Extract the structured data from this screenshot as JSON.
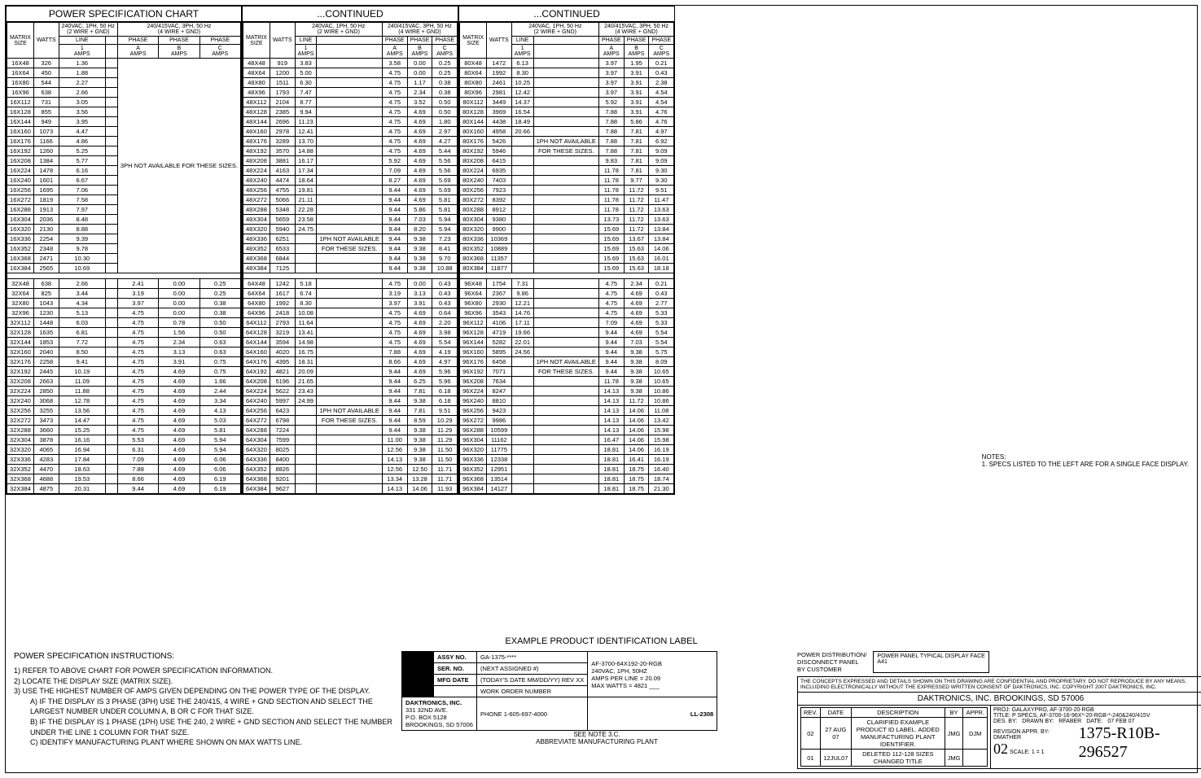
{
  "chart1": {
    "title": "POWER SPECIFICATION CHART",
    "col_group_a": "240VAC, 1PH, 50 Hz\n(2 WIRE + GND)",
    "col_group_b": "240/415VAC, 3PH, 50 Hz\n(4 WIRE + GND)",
    "headers": [
      "MATRIX SIZE",
      "WATTS",
      "LINE 1 AMPS",
      "PHASE A AMPS",
      "PHASE B AMPS",
      "PHASE C AMPS"
    ],
    "note": "3PH NOT AVAILABLE FOR THESE SIZES.",
    "rows_a": [
      [
        "16X48",
        "326",
        "1.36"
      ],
      [
        "16X64",
        "450",
        "1.88"
      ],
      [
        "16X80",
        "544",
        "2.27"
      ],
      [
        "16X96",
        "638",
        "2.66"
      ],
      [
        "16X112",
        "731",
        "3.05"
      ],
      [
        "16X128",
        "855",
        "3.56"
      ],
      [
        "16X144",
        "949",
        "3.95"
      ],
      [
        "16X160",
        "1073",
        "4.47"
      ],
      [
        "16X176",
        "1166",
        "4.86"
      ],
      [
        "16X192",
        "1260",
        "5.25"
      ],
      [
        "16X208",
        "1384",
        "5.77"
      ],
      [
        "16X224",
        "1478",
        "6.16"
      ],
      [
        "16X240",
        "1601",
        "6.67"
      ],
      [
        "16X256",
        "1695",
        "7.06"
      ],
      [
        "16X272",
        "1819",
        "7.58"
      ],
      [
        "16X288",
        "1913",
        "7.97"
      ],
      [
        "16X304",
        "2036",
        "8.48"
      ],
      [
        "16X320",
        "2130",
        "8.88"
      ],
      [
        "16X336",
        "2254",
        "9.39"
      ],
      [
        "16X352",
        "2348",
        "9.78"
      ],
      [
        "16X368",
        "2471",
        "10.30"
      ],
      [
        "16X384",
        "2565",
        "10.69"
      ]
    ],
    "rows_b": [
      [
        "32X48",
        "638",
        "2.66",
        "2.41",
        "0.00",
        "0.25"
      ],
      [
        "32X64",
        "825",
        "3.44",
        "3.19",
        "0.00",
        "0.25"
      ],
      [
        "32X80",
        "1043",
        "4.34",
        "3.97",
        "0.00",
        "0.38"
      ],
      [
        "32X96",
        "1230",
        "5.13",
        "4.75",
        "0.00",
        "0.38"
      ],
      [
        "32X112",
        "1448",
        "6.03",
        "4.75",
        "0.78",
        "0.50"
      ],
      [
        "32X128",
        "1635",
        "6.81",
        "4.75",
        "1.56",
        "0.50"
      ],
      [
        "32X144",
        "1853",
        "7.72",
        "4.75",
        "2.34",
        "0.63"
      ],
      [
        "32X160",
        "2040",
        "8.50",
        "4.75",
        "3.13",
        "0.63"
      ],
      [
        "32X176",
        "2258",
        "9.41",
        "4.75",
        "3.91",
        "0.75"
      ],
      [
        "32X192",
        "2445",
        "10.19",
        "4.75",
        "4.69",
        "0.75"
      ],
      [
        "32X208",
        "2663",
        "11.09",
        "4.75",
        "4.69",
        "1.66"
      ],
      [
        "32X224",
        "2850",
        "11.88",
        "4.75",
        "4.69",
        "2.44"
      ],
      [
        "32X240",
        "3068",
        "12.78",
        "4.75",
        "4.69",
        "3.34"
      ],
      [
        "32X256",
        "3255",
        "13.56",
        "4.75",
        "4.69",
        "4.13"
      ],
      [
        "32X272",
        "3473",
        "14.47",
        "4.75",
        "4.69",
        "5.03"
      ],
      [
        "32X288",
        "3660",
        "15.25",
        "4.75",
        "4.69",
        "5.81"
      ],
      [
        "32X304",
        "3878",
        "16.16",
        "5.53",
        "4.69",
        "5.94"
      ],
      [
        "32X320",
        "4065",
        "16.94",
        "6.31",
        "4.69",
        "5.94"
      ],
      [
        "32X336",
        "4283",
        "17.84",
        "7.09",
        "4.69",
        "6.06"
      ],
      [
        "32X352",
        "4470",
        "18.63",
        "7.88",
        "4.69",
        "6.06"
      ],
      [
        "32X368",
        "4688",
        "19.53",
        "8.66",
        "4.69",
        "6.19"
      ],
      [
        "32X384",
        "4875",
        "20.31",
        "9.44",
        "4.69",
        "6.19"
      ]
    ]
  },
  "chart2": {
    "title": "...CONTINUED",
    "rows_a": [
      [
        "48X48",
        "919",
        "3.83",
        "",
        "3.58",
        "0.00",
        "0.25"
      ],
      [
        "48X64",
        "1200",
        "5.00",
        "",
        "4.75",
        "0.00",
        "0.25"
      ],
      [
        "48X80",
        "1511",
        "6.30",
        "",
        "4.75",
        "1.17",
        "0.38"
      ],
      [
        "48X96",
        "1793",
        "7.47",
        "",
        "4.75",
        "2.34",
        "0.38"
      ],
      [
        "48X112",
        "2104",
        "8.77",
        "",
        "4.75",
        "3.52",
        "0.50"
      ],
      [
        "48X128",
        "2385",
        "9.94",
        "",
        "4.75",
        "4.69",
        "0.50"
      ],
      [
        "48X144",
        "2696",
        "11.23",
        "",
        "4.75",
        "4.69",
        "1.80"
      ],
      [
        "48X160",
        "2978",
        "12.41",
        "",
        "4.75",
        "4.69",
        "2.97"
      ],
      [
        "48X176",
        "3289",
        "13.70",
        "",
        "4.75",
        "4.69",
        "4.27"
      ],
      [
        "48X192",
        "3570",
        "14.88",
        "",
        "4.75",
        "4.69",
        "5.44"
      ],
      [
        "48X208",
        "3881",
        "16.17",
        "",
        "5.92",
        "4.69",
        "5.56"
      ],
      [
        "48X224",
        "4163",
        "17.34",
        "",
        "7.09",
        "4.69",
        "5.56"
      ],
      [
        "48X240",
        "4474",
        "18.64",
        "",
        "8.27",
        "4.69",
        "5.69"
      ],
      [
        "48X256",
        "4755",
        "19.81",
        "",
        "9.44",
        "4.69",
        "5.69"
      ],
      [
        "48X272",
        "5066",
        "21.11",
        "",
        "9.44",
        "4.69",
        "5.81"
      ],
      [
        "48X288",
        "5348",
        "22.28",
        "",
        "9.44",
        "5.86",
        "5.81"
      ],
      [
        "48X304",
        "5659",
        "23.58",
        "",
        "9.44",
        "7.03",
        "5.94"
      ],
      [
        "48X320",
        "5940",
        "24.75",
        "",
        "9.44",
        "8.20",
        "5.94"
      ],
      [
        "48X336",
        "6251",
        "",
        "1PH NOT AVAILABLE",
        "9.44",
        "9.38",
        "7.23"
      ],
      [
        "48X352",
        "6533",
        "",
        "FOR THESE SIZES.",
        "9.44",
        "9.38",
        "8.41"
      ],
      [
        "48X368",
        "6844",
        "",
        "",
        "9.44",
        "9.38",
        "9.70"
      ],
      [
        "48X384",
        "7125",
        "",
        "",
        "9.44",
        "9.38",
        "10.88"
      ]
    ],
    "rows_b": [
      [
        "64X48",
        "1242",
        "5.18",
        "",
        "4.75",
        "0.00",
        "0.43"
      ],
      [
        "64X64",
        "1617",
        "6.74",
        "",
        "3.19",
        "3.13",
        "0.43"
      ],
      [
        "64X80",
        "1992",
        "8.30",
        "",
        "3.97",
        "3.91",
        "0.43"
      ],
      [
        "64X96",
        "2418",
        "10.08",
        "",
        "4.75",
        "4.69",
        "0.64"
      ],
      [
        "64X112",
        "2793",
        "11.64",
        "",
        "4.75",
        "4.69",
        "2.20"
      ],
      [
        "64X128",
        "3219",
        "13.41",
        "",
        "4.75",
        "4.69",
        "3.98"
      ],
      [
        "64X144",
        "3594",
        "14.98",
        "",
        "4.75",
        "4.69",
        "5.54"
      ],
      [
        "64X160",
        "4020",
        "16.75",
        "",
        "7.88",
        "4.69",
        "4.19"
      ],
      [
        "64X176",
        "4395",
        "18.31",
        "",
        "8.66",
        "4.69",
        "4.97"
      ],
      [
        "64X192",
        "4821",
        "20.09",
        "",
        "9.44",
        "4.69",
        "5.96"
      ],
      [
        "64X208",
        "5196",
        "21.65",
        "",
        "9.44",
        "6.25",
        "5.96"
      ],
      [
        "64X224",
        "5622",
        "23.43",
        "",
        "9.44",
        "7.81",
        "6.18"
      ],
      [
        "64X240",
        "5997",
        "24.99",
        "",
        "9.44",
        "9.38",
        "6.18"
      ],
      [
        "64X256",
        "6423",
        "",
        "1PH NOT AVAILABLE",
        "9.44",
        "7.81",
        "9.51"
      ],
      [
        "64X272",
        "6798",
        "",
        "FOR THESE SIZES.",
        "9.44",
        "8.59",
        "10.29"
      ],
      [
        "64X288",
        "7224",
        "",
        "",
        "9.44",
        "9.38",
        "11.29"
      ],
      [
        "64X304",
        "7599",
        "",
        "",
        "11.00",
        "9.38",
        "11.29"
      ],
      [
        "64X320",
        "8025",
        "",
        "",
        "12.56",
        "9.38",
        "11.50"
      ],
      [
        "64X336",
        "8400",
        "",
        "",
        "14.13",
        "9.38",
        "11.50"
      ],
      [
        "64X352",
        "8826",
        "",
        "",
        "12.56",
        "12.50",
        "11.71"
      ],
      [
        "64X368",
        "9201",
        "",
        "",
        "13.34",
        "13.28",
        "11.71"
      ],
      [
        "64X384",
        "9627",
        "",
        "",
        "14.13",
        "14.06",
        "11.93"
      ]
    ]
  },
  "chart3": {
    "title": "...CONTINUED",
    "rows_a": [
      [
        "80X48",
        "1472",
        "6.13",
        "",
        "3.97",
        "1.95",
        "0.21"
      ],
      [
        "80X64",
        "1992",
        "8.30",
        "",
        "3.97",
        "3.91",
        "0.43"
      ],
      [
        "80X80",
        "2461",
        "10.25",
        "",
        "3.97",
        "3.91",
        "2.38"
      ],
      [
        "80X96",
        "2981",
        "12.42",
        "",
        "3.97",
        "3.91",
        "4.54"
      ],
      [
        "80X112",
        "3449",
        "14.37",
        "",
        "5.92",
        "3.91",
        "4.54"
      ],
      [
        "80X128",
        "3969",
        "16.54",
        "",
        "7.88",
        "3.91",
        "4.76"
      ],
      [
        "80X144",
        "4438",
        "18.49",
        "",
        "7.88",
        "5.86",
        "4.76"
      ],
      [
        "80X160",
        "4958",
        "20.66",
        "",
        "7.88",
        "7.81",
        "4.97"
      ],
      [
        "80X176",
        "5426",
        "",
        "1PH NOT AVAILABLE",
        "7.88",
        "7.81",
        "6.92"
      ],
      [
        "80X192",
        "5946",
        "",
        "FOR THESE SIZES.",
        "7.88",
        "7.81",
        "9.09"
      ],
      [
        "80X208",
        "6415",
        "",
        "",
        "9.83",
        "7.81",
        "9.09"
      ],
      [
        "80X224",
        "6935",
        "",
        "",
        "11.78",
        "7.81",
        "9.30"
      ],
      [
        "80X240",
        "7403",
        "",
        "",
        "11.78",
        "9.77",
        "9.30"
      ],
      [
        "80X256",
        "7923",
        "",
        "",
        "11.78",
        "11.72",
        "9.51"
      ],
      [
        "80X272",
        "8392",
        "",
        "",
        "11.78",
        "11.72",
        "11.47"
      ],
      [
        "80X288",
        "8912",
        "",
        "",
        "11.78",
        "11.72",
        "13.63"
      ],
      [
        "80X304",
        "9380",
        "",
        "",
        "13.73",
        "11.72",
        "13.63"
      ],
      [
        "80X320",
        "9900",
        "",
        "",
        "15.69",
        "11.72",
        "13.84"
      ],
      [
        "80X336",
        "10369",
        "",
        "",
        "15.69",
        "13.67",
        "13.84"
      ],
      [
        "80X352",
        "10889",
        "",
        "",
        "15.69",
        "15.63",
        "14.06"
      ],
      [
        "80X368",
        "11357",
        "",
        "",
        "15.69",
        "15.63",
        "16.01"
      ],
      [
        "80X384",
        "11877",
        "",
        "",
        "15.69",
        "15.63",
        "18.18"
      ]
    ],
    "rows_b": [
      [
        "96X48",
        "1754",
        "7.31",
        "",
        "4.75",
        "2.34",
        "0.21"
      ],
      [
        "96X64",
        "2367",
        "9.86",
        "",
        "4.75",
        "4.69",
        "0.43"
      ],
      [
        "96X80",
        "2930",
        "12.21",
        "",
        "4.75",
        "4.69",
        "2.77"
      ],
      [
        "96X96",
        "3543",
        "14.76",
        "",
        "4.75",
        "4.69",
        "5.33"
      ],
      [
        "96X112",
        "4106",
        "17.11",
        "",
        "7.09",
        "4.69",
        "5.33"
      ],
      [
        "96X128",
        "4719",
        "19.66",
        "",
        "9.44",
        "4.69",
        "5.54"
      ],
      [
        "96X144",
        "5282",
        "22.01",
        "",
        "9.44",
        "7.03",
        "5.54"
      ],
      [
        "96X160",
        "5895",
        "24.56",
        "",
        "9.44",
        "9.38",
        "5.75"
      ],
      [
        "96X176",
        "6458",
        "",
        "1PH NOT AVAILABLE",
        "9.44",
        "9.38",
        "8.09"
      ],
      [
        "96X192",
        "7071",
        "",
        "FOR THESE SIZES.",
        "9.44",
        "9.38",
        "10.65"
      ],
      [
        "96X208",
        "7634",
        "",
        "",
        "11.78",
        "9.38",
        "10.65"
      ],
      [
        "96X224",
        "8247",
        "",
        "",
        "14.13",
        "9.38",
        "10.86"
      ],
      [
        "96X240",
        "8810",
        "",
        "",
        "14.13",
        "11.72",
        "10.86"
      ],
      [
        "96X256",
        "9423",
        "",
        "",
        "14.13",
        "14.06",
        "11.08"
      ],
      [
        "96X272",
        "9986",
        "",
        "",
        "14.13",
        "14.06",
        "13.42"
      ],
      [
        "96X288",
        "10599",
        "",
        "",
        "14.13",
        "14.06",
        "15.98"
      ],
      [
        "96X304",
        "11162",
        "",
        "",
        "16.47",
        "14.06",
        "15.98"
      ],
      [
        "96X320",
        "11775",
        "",
        "",
        "18.81",
        "14.06",
        "16.19"
      ],
      [
        "96X336",
        "12338",
        "",
        "",
        "18.81",
        "16.41",
        "16.19"
      ],
      [
        "96X352",
        "12951",
        "",
        "",
        "18.81",
        "18.75",
        "16.40"
      ],
      [
        "96X368",
        "13514",
        "",
        "",
        "18.81",
        "18.75",
        "18.74"
      ],
      [
        "96X384",
        "14127",
        "",
        "",
        "18.81",
        "18.75",
        "21.30"
      ]
    ]
  },
  "example_label": {
    "title": "EXAMPLE PRODUCT IDENTIFICATION LABEL",
    "rows": [
      [
        "ASSY NO.",
        "GA-1375-****"
      ],
      [
        "SER. NO.",
        "(NEXT ASSIGNED #)"
      ],
      [
        "MFG DATE",
        "(TODAY'S DATE MM/DD/YY) REV XX"
      ],
      [
        "",
        "WORK ORDER NUMBER"
      ]
    ],
    "company": "DAKTRONICS, INC.",
    "addr1": "331 32ND AVE.",
    "addr2": "P.O. BOX 5128",
    "addr3": "BROOKINGS, SD 57006",
    "phone": "PHONE 1-605-697-4000",
    "see_note": "SEE NOTE 3.C.",
    "abbrev": "ABBREVIATE MANUFACTURING PLANT",
    "side": [
      "AF-3700-64X192-20-RGB",
      "240VAC, 1PH, 50HZ",
      "AMPS PER LINE = 20.09",
      "MAX WATTS = 4821   ___"
    ],
    "ll": "LL-2308"
  },
  "instructions": {
    "title": "POWER SPECIFICATION INSTRUCTIONS:",
    "items": [
      "1) REFER TO ABOVE CHART FOR POWER SPECIFICATION INFORMATION.",
      "2) LOCATE THE DISPLAY SIZE (MATRIX SIZE).",
      "3) USE THE HIGHEST NUMBER OF AMPS GIVEN DEPENDING ON THE POWER TYPE OF THE DISPLAY.",
      "A) IF THE DISPLAY IS 3 PHASE (3PH) USE THE 240/415, 4 WIRE + GND SECTION AND SELECT THE LARGEST NUMBER UNDER COLUMN A, B OR C FOR THAT SIZE.",
      "B) IF THE DISPLAY IS 1 PHASE (1PH) USE THE 240, 2 WIRE + GND SECTION AND SELECT THE NUMBER UNDER THE LINE 1 COLUMN FOR THAT SIZE.",
      "C) IDENTIFY MANUFACTURING PLANT WHERE SHOWN ON MAX WATTS LINE."
    ]
  },
  "notes": {
    "title": "NOTES:",
    "n1": "1. SPECS LISTED TO THE LEFT ARE FOR A SINGLE FACE DISPLAY."
  },
  "dist": {
    "l1": "POWER DISTRIBUTION/",
    "l2": "DISCONNECT PANEL",
    "l3": "BY CUSTOMER"
  },
  "face": {
    "panel": "POWER PANEL",
    "typ": "TYPICAL DISPLAY FACE",
    "a41": "A41"
  },
  "titleblock": {
    "legal": "THE CONCEPTS EXPRESSED AND DETAILS SHOWN ON THIS DRAWING ARE CONFIDENTIAL AND PROPRIETARY. DO NOT REPRODUCE BY ANY MEANS, INCLUDING ELECTRONICALLY WITHOUT THE EXPRESSED WRITTEN CONSENT OF DAKTRONICS, INC.     COPYRIGHT 2007 DAKTRONICS, INC.",
    "company": "DAKTRONICS, INC.  BROOKINGS, SD 57006",
    "proj_l": "PROJ:",
    "proj": "GALAXYPRO, AF-3700-20-RGB",
    "title_l": "TITLE:",
    "title": "P SPECS, AF-3700-16-96X*-20-RGB-*-240&240/415V",
    "des_l": "DES. BY:",
    "drawn_l": "DRAWN BY:",
    "drawn": "RFABER",
    "date_l": "DATE:",
    "date": "07 FEB 07",
    "rev_l": "REVISION",
    "appr_l": "APPR. BY:",
    "appr": "DMATHER",
    "scale_l": "SCALE:",
    "scale": "1 = 1",
    "dwg": "1375-R10B-296527",
    "rev_rows": [
      [
        "02",
        "27 AUG 07",
        "CLARIFIED EXAMPLE PRODUCT ID LABEL. ADDED MANUFACTURING PLANT IDENTIFIER.",
        "JMG",
        "DJM"
      ],
      [
        "01",
        "12JUL07",
        "DELETED 112-128 SIZES CHANGED TITLE",
        "JMG",
        ""
      ]
    ],
    "rev_hdr": [
      "REV.",
      "DATE",
      "DESCRIPTION",
      "BY",
      "APPR."
    ],
    "rev02": "02"
  }
}
